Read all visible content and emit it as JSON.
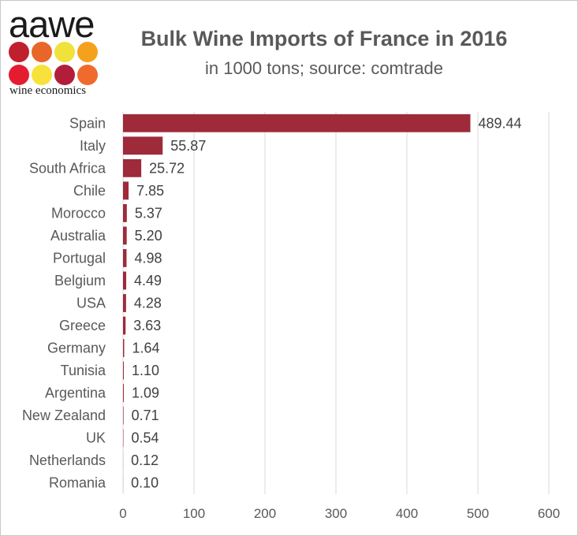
{
  "logo": {
    "word": "aawe",
    "subtitle": "wine economics",
    "dot_colors": [
      "#c0202e",
      "#e8662a",
      "#f0e23a",
      "#f4a21e",
      "#e51c30",
      "#f7e23c",
      "#b21e3a",
      "#ef6a2c"
    ]
  },
  "chart_data": {
    "type": "bar",
    "orientation": "horizontal",
    "title": "Bulk Wine Imports of France in 2016",
    "subtitle": "in 1000 tons; source: comtrade",
    "xlabel": "",
    "ylabel": "",
    "categories": [
      "Spain",
      "Italy",
      "South Africa",
      "Chile",
      "Morocco",
      "Australia",
      "Portugal",
      "Belgium",
      "USA",
      "Greece",
      "Germany",
      "Tunisia",
      "Argentina",
      "New Zealand",
      "UK",
      "Netherlands",
      "Romania"
    ],
    "values": [
      489.44,
      55.87,
      25.72,
      7.85,
      5.37,
      5.2,
      4.98,
      4.49,
      4.28,
      3.63,
      1.64,
      1.1,
      1.09,
      0.71,
      0.54,
      0.12,
      0.1
    ],
    "value_labels": [
      "489.44",
      "55.87",
      "25.72",
      "7.85",
      "5.37",
      "5.20",
      "4.98",
      "4.49",
      "4.28",
      "3.63",
      "1.64",
      "1.10",
      "1.09",
      "0.71",
      "0.54",
      "0.12",
      "0.10"
    ],
    "xlim": [
      0,
      600
    ],
    "x_ticks": [
      0,
      100,
      200,
      300,
      400,
      500,
      600
    ],
    "x_tick_labels": [
      "0",
      "100",
      "200",
      "300",
      "400",
      "500",
      "600"
    ],
    "grid": "vertical",
    "legend": "none",
    "bar_color": "#9e2a3a",
    "grid_color": "#d9d9d9"
  }
}
